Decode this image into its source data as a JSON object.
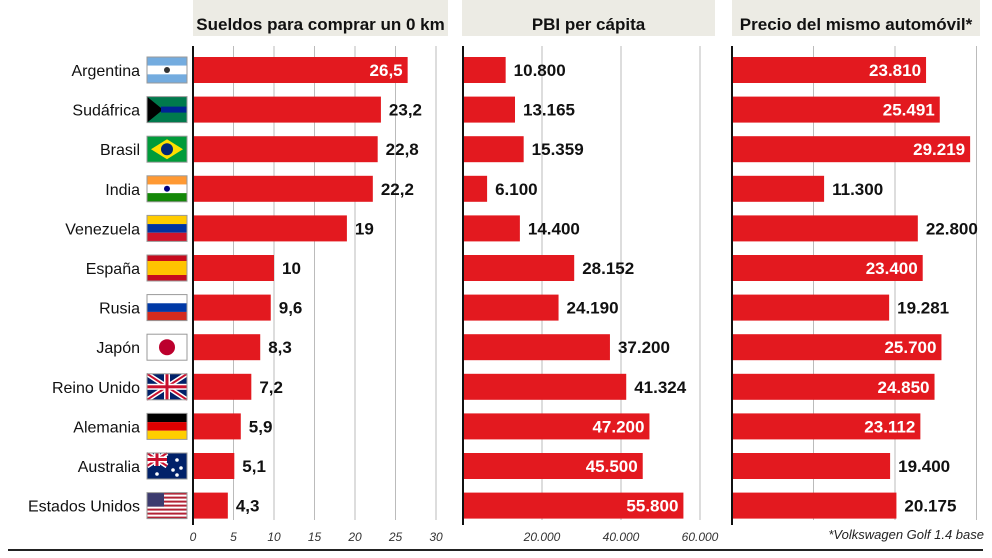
{
  "chart_data": [
    {
      "type": "bar",
      "title": "Sueldos para comprar un 0 km",
      "categories": [
        "Argentina",
        "Sudáfrica",
        "Brasil",
        "India",
        "Venezuela",
        "España",
        "Rusia",
        "Japón",
        "Reino Unido",
        "Alemania",
        "Australia",
        "Estados Unidos"
      ],
      "values": [
        26.5,
        23.2,
        22.8,
        22.2,
        19,
        10,
        9.6,
        8.3,
        7.2,
        5.9,
        5.1,
        4.3
      ],
      "value_labels": [
        "26,5",
        "23,2",
        "22,8",
        "22,2",
        "19",
        "10",
        "9,6",
        "8,3",
        "7,2",
        "5,9",
        "5,1",
        "4,3"
      ],
      "xlim": [
        0,
        30
      ],
      "ticks": [
        "0",
        "5",
        "10",
        "15",
        "20",
        "25",
        "30"
      ],
      "tick_values": [
        0,
        5,
        10,
        15,
        20,
        25,
        30
      ]
    },
    {
      "type": "bar",
      "title": "PBI per cápita",
      "categories": [
        "Argentina",
        "Sudáfrica",
        "Brasil",
        "India",
        "Venezuela",
        "España",
        "Rusia",
        "Japón",
        "Reino Unido",
        "Alemania",
        "Australia",
        "Estados Unidos"
      ],
      "values": [
        10800,
        13165,
        15359,
        6100,
        14400,
        28152,
        24190,
        37200,
        41324,
        47200,
        45500,
        55800
      ],
      "value_labels": [
        "10.800",
        "13.165",
        "15.359",
        "6.100",
        "14.400",
        "28.152",
        "24.190",
        "37.200",
        "41.324",
        "47.200",
        "45.500",
        "55.800"
      ],
      "xlim": [
        0,
        60000
      ],
      "ticks": [
        "20.000",
        "40.000",
        "60.000"
      ],
      "tick_values": [
        20000,
        40000,
        60000
      ]
    },
    {
      "type": "bar",
      "title": "Precio del mismo automóvil*",
      "categories": [
        "Argentina",
        "Sudáfrica",
        "Brasil",
        "India",
        "Venezuela",
        "España",
        "Rusia",
        "Japón",
        "Reino Unido",
        "Alemania",
        "Australia",
        "Estados Unidos"
      ],
      "values": [
        23810,
        25491,
        29219,
        11300,
        22800,
        23400,
        19281,
        25700,
        24850,
        23112,
        19400,
        20175
      ],
      "value_labels": [
        "23.810",
        "25.491",
        "29.219",
        "11.300",
        "22.800",
        "23.400",
        "19.281",
        "25.700",
        "24.850",
        "23.112",
        "19.400",
        "20.175"
      ],
      "xlim": [
        0,
        30000
      ]
    }
  ],
  "headers": [
    "Sueldos para comprar un 0 km",
    "PBI per cápita",
    "Precio del mismo automóvil*"
  ],
  "footnote": "*Volkswagen Golf 1.4 base",
  "colors": {
    "bar": "#e3191f",
    "header_bg": "#ecebe4",
    "grid": "#bbbbbb"
  }
}
